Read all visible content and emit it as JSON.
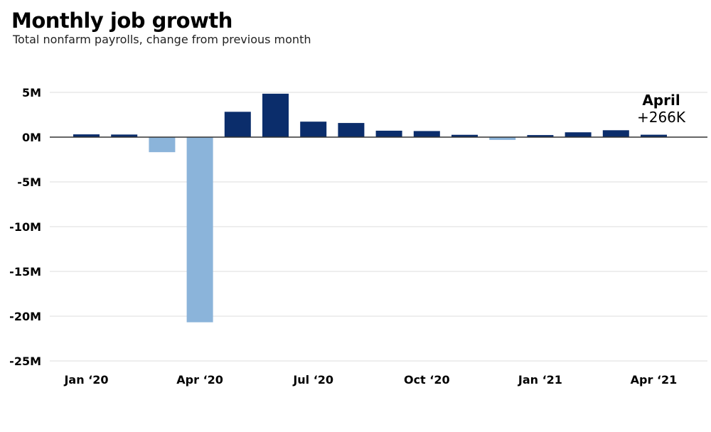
{
  "chart_data": {
    "type": "bar",
    "title": "Monthly job growth",
    "subtitle": "Total nonfarm payrolls, change from previous month",
    "xlabel": "",
    "ylabel": "",
    "unit": "millions of jobs",
    "categories": [
      "Jan 2020",
      "Feb 2020",
      "Mar 2020",
      "Apr 2020",
      "May 2020",
      "Jun 2020",
      "Jul 2020",
      "Aug 2020",
      "Sep 2020",
      "Oct 2020",
      "Nov 2020",
      "Dec 2020",
      "Jan 2021",
      "Feb 2021",
      "Mar 2021",
      "Apr 2021"
    ],
    "values": [
      0.31,
      0.29,
      -1.68,
      -20.68,
      2.83,
      4.85,
      1.73,
      1.58,
      0.72,
      0.68,
      0.26,
      -0.31,
      0.23,
      0.54,
      0.77,
      0.27
    ],
    "ylim": [
      -25,
      5
    ],
    "yticks": [
      {
        "value": 5,
        "label": "5M"
      },
      {
        "value": 0,
        "label": "0M"
      },
      {
        "value": -5,
        "label": "-5M"
      },
      {
        "value": -10,
        "label": "-10M"
      },
      {
        "value": -15,
        "label": "-15M"
      },
      {
        "value": -20,
        "label": "-20M"
      },
      {
        "value": -25,
        "label": "-25M"
      }
    ],
    "xticks": [
      {
        "index": 0,
        "label": "Jan ‘20"
      },
      {
        "index": 3,
        "label": "Apr ‘20"
      },
      {
        "index": 6,
        "label": "Jul ‘20"
      },
      {
        "index": 9,
        "label": "Oct ‘20"
      },
      {
        "index": 12,
        "label": "Jan ‘21"
      },
      {
        "index": 15,
        "label": "Apr ‘21"
      }
    ],
    "annotation": {
      "title": "April",
      "value": "+266K"
    },
    "grid": true,
    "legend": "none"
  },
  "colors": {
    "positive": "#0b2d6b",
    "negative": "#8bb4da",
    "gridline": "#e8e8e8",
    "zero_line": "#333333"
  }
}
